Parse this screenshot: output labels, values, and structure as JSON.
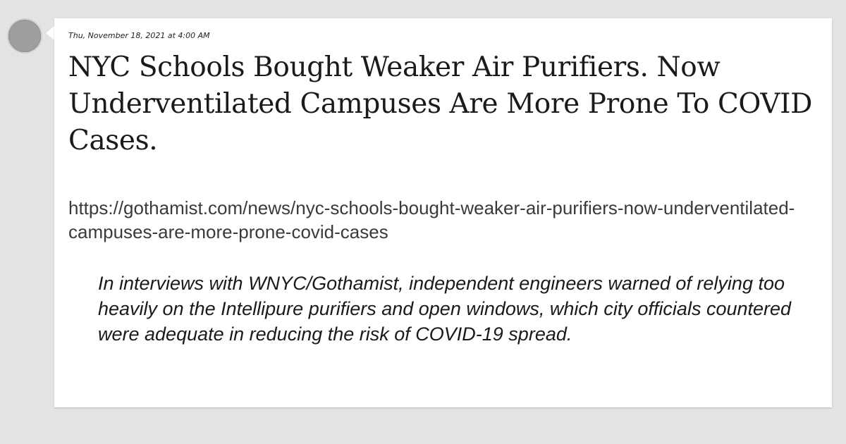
{
  "post": {
    "timestamp": "Thu, November 18, 2021 at 4:00 AM",
    "headline": "NYC Schools Bought Weaker Air Purifiers. Now Underventilated Campuses Are More Prone To COVID Cases.",
    "url": "https://gothamist.com/news/nyc-schools-bought-weaker-air-purifiers-now-underventilated-campuses-are-more-prone-covid-cases",
    "quote": "In interviews with WNYC/Gothamist, independent engineers warned of relying too heavily on the Intellipure purifiers and open windows, which city officials countered were adequate in reducing the risk of COVID-19 spread."
  },
  "colors": {
    "page_background": "#e3e3e3",
    "card_background": "#ffffff",
    "avatar": "#9e9e9e"
  }
}
